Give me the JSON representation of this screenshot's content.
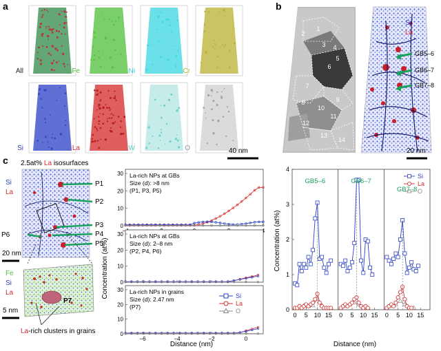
{
  "panel_labels": {
    "a": "a",
    "b": "b",
    "c": "c"
  },
  "colors": {
    "si": "#2a3fc4",
    "la": "#d42a2a",
    "fe": "#4fbf3a",
    "ni": "#3ad6e0",
    "cr": "#b8b030",
    "w": "#5cc8c0",
    "o": "#999999",
    "gb": "#19a05a"
  },
  "panel_a": {
    "tiles": [
      {
        "label": "All",
        "color": "#2f8a4a"
      },
      {
        "label": "Fe",
        "color": "#4fbf3a"
      },
      {
        "label": "Ni",
        "color": "#3ad6e0"
      },
      {
        "label": "Cr",
        "color": "#b8b030"
      },
      {
        "label": "Si",
        "color": "#2a3fc4"
      },
      {
        "label": "La",
        "color": "#d42a2a"
      },
      {
        "label": "W",
        "color": "#5cc8c0"
      },
      {
        "label": "O",
        "color": "#999999"
      }
    ],
    "scale_bar": "40 nm"
  },
  "panel_b": {
    "grain_numbers": [
      "1",
      "2",
      "3",
      "4",
      "5",
      "6",
      "7",
      "8",
      "9",
      "10",
      "11",
      "12",
      "13",
      "14"
    ],
    "legend_si": "Si",
    "legend_la": "La",
    "gb_labels": [
      "GB5–6",
      "GB6–7",
      "GB7–8"
    ],
    "scale_bar": "20 nm"
  },
  "panel_c": {
    "iso_title_pre": "2.5at% ",
    "iso_title_la": "La",
    "iso_title_post": " isosurfaces",
    "legend_si": "Si",
    "legend_la": "La",
    "p_labels": [
      "P1",
      "P2",
      "P3",
      "P4",
      "P5",
      "P6"
    ],
    "scale_top": "20 nm",
    "legend2_fe": "Fe",
    "legend2_si": "Si",
    "legend2_la": "La",
    "p7": "P7",
    "scale_bottom": "5 nm",
    "caption_la": "La",
    "caption_rest": "-rich clusters in grains",
    "ylabel": "Concentration (at%)",
    "xlabel": "Distance (nm)",
    "subplots": [
      {
        "lines": [
          "La-rich NPs at GBs",
          "Size (d): >8 nm",
          "(P1, P3, P5)"
        ],
        "yticks": [
          "0",
          "10",
          "20",
          "30"
        ],
        "xticks": [
          "−4",
          "−2",
          "0",
          "2",
          "4"
        ]
      },
      {
        "lines": [
          "La-rich NPs at GBs",
          "Size (d): 2–8 nm",
          "(P2, P4, P6)"
        ],
        "yticks": [
          "0",
          "10",
          "20",
          "30"
        ],
        "xticks": [
          "−6",
          "−4",
          "−2",
          "0"
        ]
      },
      {
        "lines": [
          "La-rich NPs in grains",
          "Size (d): 2.47 nm",
          "(P7)"
        ],
        "yticks": [
          "0",
          "10",
          "20",
          "30"
        ],
        "xticks": [
          "−6",
          "−4",
          "−2",
          "0"
        ]
      }
    ],
    "legend": [
      {
        "name": "Si"
      },
      {
        "name": "La"
      },
      {
        "name": "O"
      }
    ]
  },
  "chart_data": {
    "type": "line",
    "ylabel": "Concentration (at%)",
    "xlabel": "Distance (nm)",
    "ylim": [
      0,
      4
    ],
    "yticks": [
      "0",
      "1",
      "2",
      "3",
      "4"
    ],
    "series_names": [
      "Si",
      "La",
      "O"
    ],
    "segments": [
      {
        "label": "GB5–6",
        "xticks": [
          "0",
          "5",
          "10",
          "15"
        ],
        "xlim": [
          0,
          18
        ],
        "si": [
          [
            0,
            0.75
          ],
          [
            1,
            0.7
          ],
          [
            2,
            1.3
          ],
          [
            3,
            1.1
          ],
          [
            4,
            1.3
          ],
          [
            5,
            1.2
          ],
          [
            6,
            1.5
          ],
          [
            7,
            1.3
          ],
          [
            8,
            1.7
          ],
          [
            9,
            2.6
          ],
          [
            10,
            3.05
          ],
          [
            11,
            1.45
          ],
          [
            12,
            1.5
          ],
          [
            13,
            1.2
          ],
          [
            14,
            1.05
          ],
          [
            15,
            1.3
          ],
          [
            16,
            1.4
          ]
        ],
        "la": [
          [
            0,
            0.05
          ],
          [
            1,
            0.05
          ],
          [
            2,
            0.1
          ],
          [
            3,
            0.05
          ],
          [
            4,
            0.1
          ],
          [
            5,
            0.15
          ],
          [
            6,
            0.1
          ],
          [
            7,
            0.15
          ],
          [
            8,
            0.2
          ],
          [
            9,
            0.3
          ],
          [
            10,
            0.45
          ],
          [
            11,
            0.2
          ],
          [
            12,
            0.1
          ],
          [
            13,
            0.05
          ],
          [
            14,
            0.05
          ],
          [
            15,
            0.05
          ],
          [
            16,
            0.05
          ]
        ],
        "o": [
          [
            0,
            0.05
          ],
          [
            2,
            0.1
          ],
          [
            4,
            0.12
          ],
          [
            6,
            0.1
          ],
          [
            8,
            0.12
          ],
          [
            10,
            0.3
          ],
          [
            12,
            0.12
          ],
          [
            14,
            0.05
          ],
          [
            16,
            0.05
          ]
        ]
      },
      {
        "label": "GB6–7",
        "xticks": [
          "0",
          "5",
          "10",
          "15"
        ],
        "xlim": [
          0,
          18
        ],
        "si": [
          [
            0,
            1.3
          ],
          [
            1,
            1.25
          ],
          [
            2,
            1.4
          ],
          [
            3,
            1.1
          ],
          [
            4,
            1.2
          ],
          [
            5,
            1.35
          ],
          [
            6,
            1.9
          ],
          [
            7,
            3.7
          ],
          [
            8,
            3.7
          ],
          [
            9,
            1.4
          ],
          [
            10,
            1.05
          ],
          [
            11,
            2.0
          ],
          [
            12,
            1.95
          ],
          [
            13,
            1.2
          ],
          [
            14,
            1.0
          ]
        ],
        "la": [
          [
            0,
            0.05
          ],
          [
            1,
            0.1
          ],
          [
            2,
            0.15
          ],
          [
            3,
            0.1
          ],
          [
            4,
            0.15
          ],
          [
            5,
            0.2
          ],
          [
            6,
            0.3
          ],
          [
            7,
            0.35
          ],
          [
            8,
            0.2
          ],
          [
            9,
            0.1
          ],
          [
            10,
            0.05
          ],
          [
            11,
            0.1
          ],
          [
            12,
            0.05
          ]
        ],
        "o": [
          [
            0,
            0.05
          ],
          [
            2,
            0.1
          ],
          [
            4,
            0.15
          ],
          [
            6,
            0.2
          ],
          [
            8,
            0.15
          ],
          [
            10,
            0.05
          ],
          [
            12,
            0.05
          ]
        ]
      },
      {
        "label": "GB7–8",
        "xticks": [
          "0",
          "5",
          "10",
          "15"
        ],
        "xlim": [
          0,
          18
        ],
        "si": [
          [
            0,
            1.5
          ],
          [
            1,
            1.4
          ],
          [
            2,
            1.3
          ],
          [
            3,
            1.45
          ],
          [
            4,
            1.6
          ],
          [
            5,
            1.5
          ],
          [
            6,
            2.0
          ],
          [
            7,
            2.55
          ],
          [
            8,
            1.6
          ],
          [
            9,
            1.05
          ],
          [
            10,
            1.2
          ],
          [
            11,
            1.35
          ],
          [
            12,
            1.15
          ],
          [
            13,
            1.1
          ],
          [
            14,
            1.25
          ]
        ],
        "la": [
          [
            0,
            0.05
          ],
          [
            1,
            0.1
          ],
          [
            2,
            0.15
          ],
          [
            3,
            0.1
          ],
          [
            4,
            0.2
          ],
          [
            5,
            0.35
          ],
          [
            6,
            0.5
          ],
          [
            7,
            0.65
          ],
          [
            8,
            0.3
          ],
          [
            9,
            0.1
          ],
          [
            10,
            0.05
          ],
          [
            11,
            0.05
          ]
        ],
        "o": [
          [
            0,
            0.05
          ],
          [
            2,
            0.1
          ],
          [
            4,
            0.15
          ],
          [
            6,
            0.25
          ],
          [
            8,
            0.15
          ],
          [
            10,
            0.05
          ],
          [
            12,
            0.05
          ]
        ]
      }
    ]
  }
}
